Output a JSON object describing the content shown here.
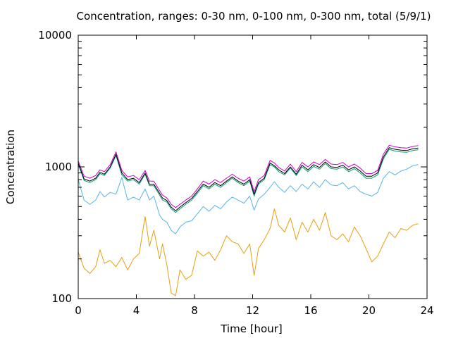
{
  "chart_data": {
    "type": "line",
    "title": "Concentration, ranges: 0-30 nm, 0-100 nm, 0-300 nm, total (5/9/1)",
    "xlabel": "Time [hour]",
    "ylabel": "Concentration",
    "xlim": [
      0,
      24
    ],
    "ylim": [
      100,
      10000
    ],
    "yscale": "log",
    "grid": false,
    "legend": "none",
    "x_ticks": [
      "0",
      "4",
      "8",
      "12",
      "16",
      "20",
      "24"
    ],
    "y_ticks": [
      "100",
      "1000",
      "10000"
    ],
    "series": [
      {
        "color": "#e5a00d",
        "x": [
          0.0,
          0.4,
          0.8,
          1.2,
          1.5,
          1.8,
          2.2,
          2.6,
          3.0,
          3.4,
          3.8,
          4.2,
          4.6,
          4.9,
          5.2,
          5.6,
          5.8,
          6.1,
          6.4,
          6.7,
          7.0,
          7.4,
          7.8,
          8.2,
          8.6,
          9.0,
          9.4,
          9.8,
          10.2,
          10.6,
          11.0,
          11.4,
          11.8,
          12.1,
          12.4,
          12.8,
          13.2,
          13.5,
          13.8,
          14.2,
          14.6,
          15.0,
          15.4,
          15.8,
          16.2,
          16.6,
          17.0,
          17.4,
          17.8,
          18.2,
          18.6,
          19.0,
          19.4,
          19.8,
          20.2,
          20.6,
          21.0,
          21.4,
          21.8,
          22.2,
          22.6,
          23.0,
          23.4
        ],
        "values": [
          225,
          170,
          155,
          175,
          235,
          185,
          195,
          175,
          205,
          165,
          200,
          220,
          420,
          250,
          330,
          200,
          260,
          180,
          110,
          105,
          165,
          140,
          150,
          230,
          210,
          225,
          195,
          235,
          300,
          270,
          260,
          220,
          260,
          150,
          240,
          280,
          340,
          480,
          360,
          320,
          410,
          280,
          380,
          320,
          400,
          330,
          450,
          300,
          280,
          310,
          270,
          350,
          300,
          240,
          190,
          210,
          260,
          320,
          290,
          340,
          330,
          360,
          370
        ]
      },
      {
        "color": "#56b4e9",
        "x": [
          0.0,
          0.4,
          0.8,
          1.2,
          1.5,
          1.8,
          2.2,
          2.6,
          3.0,
          3.4,
          3.8,
          4.2,
          4.6,
          4.9,
          5.2,
          5.6,
          5.8,
          6.1,
          6.4,
          6.7,
          7.0,
          7.4,
          7.8,
          8.2,
          8.6,
          9.0,
          9.4,
          9.8,
          10.2,
          10.6,
          11.0,
          11.4,
          11.8,
          12.1,
          12.4,
          12.8,
          13.2,
          13.5,
          13.8,
          14.2,
          14.6,
          15.0,
          15.4,
          15.8,
          16.2,
          16.6,
          17.0,
          17.4,
          17.8,
          18.2,
          18.6,
          19.0,
          19.4,
          19.8,
          20.2,
          20.6,
          21.0,
          21.4,
          21.8,
          22.2,
          22.6,
          23.0,
          23.4
        ],
        "values": [
          800,
          560,
          520,
          560,
          650,
          590,
          640,
          620,
          830,
          560,
          590,
          560,
          680,
          560,
          600,
          430,
          400,
          380,
          330,
          310,
          350,
          380,
          390,
          440,
          500,
          460,
          510,
          480,
          540,
          590,
          560,
          530,
          600,
          470,
          570,
          620,
          700,
          770,
          700,
          640,
          720,
          650,
          740,
          680,
          770,
          700,
          800,
          730,
          720,
          760,
          680,
          720,
          650,
          620,
          600,
          640,
          820,
          920,
          870,
          930,
          960,
          1020,
          1040
        ]
      },
      {
        "color": "#009e73",
        "x": [
          0.0,
          0.4,
          0.8,
          1.2,
          1.5,
          1.8,
          2.2,
          2.6,
          3.0,
          3.4,
          3.8,
          4.2,
          4.6,
          4.9,
          5.2,
          5.6,
          5.8,
          6.1,
          6.4,
          6.7,
          7.0,
          7.4,
          7.8,
          8.2,
          8.6,
          9.0,
          9.4,
          9.8,
          10.2,
          10.6,
          11.0,
          11.4,
          11.8,
          12.1,
          12.4,
          12.8,
          13.2,
          13.5,
          13.8,
          14.2,
          14.6,
          15.0,
          15.4,
          15.8,
          16.2,
          16.6,
          17.0,
          17.4,
          17.8,
          18.2,
          18.6,
          19.0,
          19.4,
          19.8,
          20.2,
          20.6,
          21.0,
          21.4,
          21.8,
          22.2,
          22.6,
          23.0,
          23.4
        ],
        "values": [
          1050,
          790,
          760,
          800,
          890,
          860,
          980,
          1220,
          870,
          780,
          800,
          740,
          880,
          720,
          720,
          610,
          560,
          540,
          480,
          450,
          480,
          520,
          560,
          630,
          720,
          680,
          740,
          700,
          760,
          820,
          760,
          720,
          780,
          600,
          740,
          800,
          1040,
          1000,
          920,
          870,
          980,
          860,
          1000,
          920,
          1010,
          960,
          1060,
          970,
          960,
          1000,
          920,
          970,
          900,
          820,
          820,
          870,
          1150,
          1360,
          1320,
          1300,
          1290,
          1330,
          1350
        ]
      },
      {
        "color": "#000000",
        "x": [
          0.0,
          0.4,
          0.8,
          1.2,
          1.5,
          1.8,
          2.2,
          2.6,
          3.0,
          3.4,
          3.8,
          4.2,
          4.6,
          4.9,
          5.2,
          5.6,
          5.8,
          6.1,
          6.4,
          6.7,
          7.0,
          7.4,
          7.8,
          8.2,
          8.6,
          9.0,
          9.4,
          9.8,
          10.2,
          10.6,
          11.0,
          11.4,
          11.8,
          12.1,
          12.4,
          12.8,
          13.2,
          13.5,
          13.8,
          14.2,
          14.6,
          15.0,
          15.4,
          15.8,
          16.2,
          16.6,
          17.0,
          17.4,
          17.8,
          18.2,
          18.6,
          19.0,
          19.4,
          19.8,
          20.2,
          20.6,
          21.0,
          21.4,
          21.8,
          22.2,
          22.6,
          23.0,
          23.4
        ],
        "values": [
          1070,
          810,
          780,
          820,
          910,
          880,
          1000,
          1250,
          900,
          800,
          820,
          760,
          900,
          740,
          740,
          630,
          580,
          555,
          495,
          465,
          495,
          535,
          575,
          650,
          740,
          700,
          760,
          720,
          780,
          840,
          780,
          740,
          800,
          620,
          760,
          820,
          1070,
          1020,
          950,
          890,
          1000,
          880,
          1030,
          950,
          1040,
          990,
          1090,
          1000,
          990,
          1030,
          950,
          1000,
          930,
          850,
          850,
          900,
          1190,
          1400,
          1360,
          1340,
          1330,
          1370,
          1390
        ]
      },
      {
        "color": "#cc00cc",
        "x": [
          0.0,
          0.4,
          0.8,
          1.2,
          1.5,
          1.8,
          2.2,
          2.6,
          3.0,
          3.4,
          3.8,
          4.2,
          4.6,
          4.9,
          5.2,
          5.6,
          5.8,
          6.1,
          6.4,
          6.7,
          7.0,
          7.4,
          7.8,
          8.2,
          8.6,
          9.0,
          9.4,
          9.8,
          10.2,
          10.6,
          11.0,
          11.4,
          11.8,
          12.1,
          12.4,
          12.8,
          13.2,
          13.5,
          13.8,
          14.2,
          14.6,
          15.0,
          15.4,
          15.8,
          16.2,
          16.6,
          17.0,
          17.4,
          17.8,
          18.2,
          18.6,
          19.0,
          19.4,
          19.8,
          20.2,
          20.6,
          21.0,
          21.4,
          21.8,
          22.2,
          22.6,
          23.0,
          23.4
        ],
        "values": [
          1110,
          850,
          820,
          860,
          950,
          920,
          1040,
          1300,
          940,
          840,
          860,
          800,
          940,
          780,
          780,
          660,
          610,
          580,
          520,
          490,
          520,
          560,
          600,
          680,
          780,
          740,
          800,
          760,
          820,
          880,
          820,
          780,
          840,
          650,
          800,
          860,
          1120,
          1070,
          990,
          930,
          1050,
          920,
          1080,
          1000,
          1090,
          1040,
          1140,
          1050,
          1040,
          1080,
          1000,
          1050,
          980,
          890,
          890,
          940,
          1250,
          1460,
          1420,
          1400,
          1390,
          1430,
          1450
        ]
      }
    ]
  }
}
